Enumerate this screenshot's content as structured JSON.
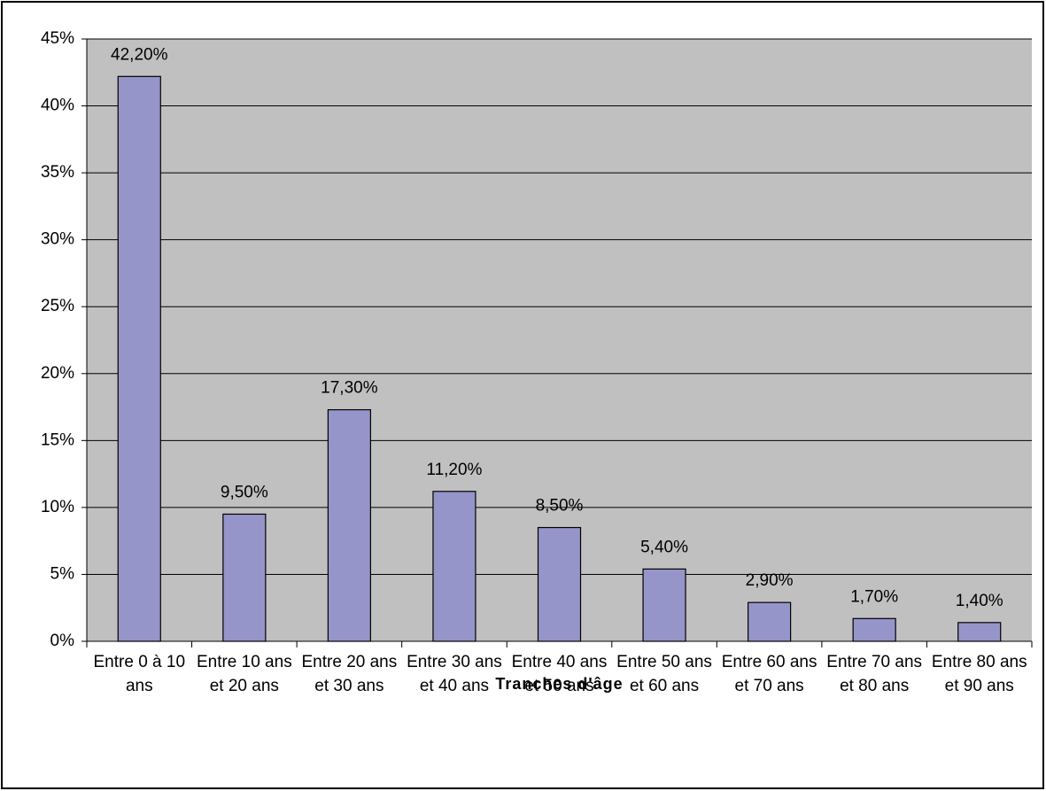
{
  "chart_data": {
    "type": "bar",
    "x_label": "Tranches d'âge",
    "categories": [
      "Entre 0 à 10 ans",
      "Entre 10 ans et 20 ans",
      "Entre 20 ans et 30 ans",
      "Entre 30 ans et 40 ans",
      "Entre 40 ans et 50 ans",
      "Entre 50 ans et 60 ans",
      "Entre 60 ans et 70 ans",
      "Entre 70 ans et 80 ans",
      "Entre 80 ans et 90 ans"
    ],
    "values": [
      42.2,
      9.5,
      17.3,
      11.2,
      8.5,
      5.4,
      2.9,
      1.7,
      1.4
    ],
    "value_labels": [
      "42,20%",
      "9,50%",
      "17,30%",
      "11,20%",
      "8,50%",
      "5,40%",
      "2,90%",
      "1,70%",
      "1,40%"
    ],
    "color": "#9595c9",
    "ylim": [
      0,
      45
    ],
    "yticks": [
      {
        "value": 0,
        "label": "0%"
      },
      {
        "value": 5,
        "label": "5%"
      },
      {
        "value": 10,
        "label": "10%"
      },
      {
        "value": 15,
        "label": "15%"
      },
      {
        "value": 20,
        "label": "20%"
      },
      {
        "value": 25,
        "label": "25%"
      },
      {
        "value": 30,
        "label": "30%"
      },
      {
        "value": 35,
        "label": "35%"
      },
      {
        "value": 40,
        "label": "40%"
      },
      {
        "value": 45,
        "label": "45%"
      }
    ],
    "grid": true
  }
}
